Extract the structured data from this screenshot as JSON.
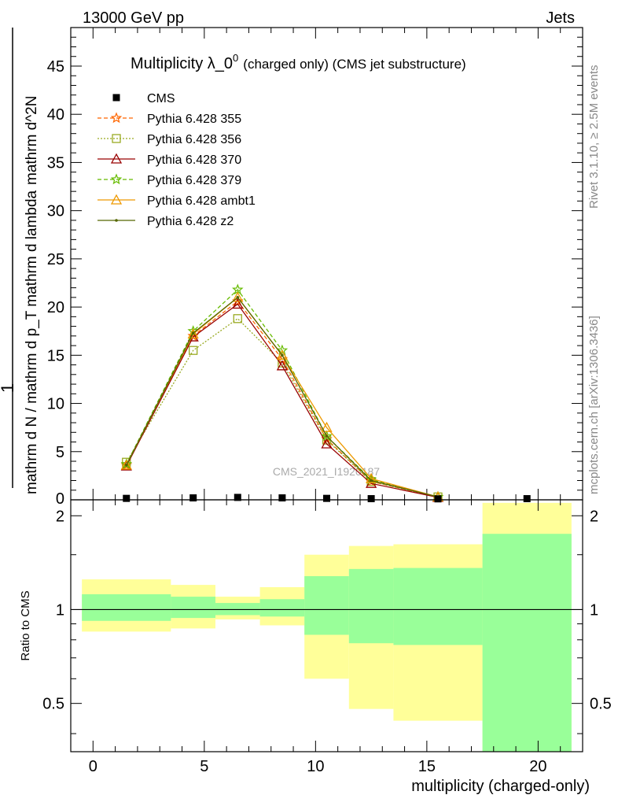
{
  "header": {
    "left": "13000 GeV pp",
    "right": "Jets"
  },
  "side_texts": {
    "rivet": "Rivet 3.1.10, ≥ 2.5M events",
    "mcplots": "mcplots.cern.ch [arXiv:1306.3436]"
  },
  "colors": {
    "ratio_band_outer": "#ffff99",
    "ratio_band_inner": "#99ff99",
    "data_marker": "#000000"
  },
  "chart_data": [
    {
      "type": "line",
      "title": "Multiplicity λ_0",
      "title_superscript": "0",
      "title_suffix": "(charged only) (CMS jet substructure)",
      "ylabel_numerator": "1",
      "ylabel": "mathrm d N / mathrm d p_T mathrm d lambda",
      "ylabel_top": "mathrm d^2N",
      "watermark": "CMS_2021_I1920187",
      "xlim": [
        -1,
        22
      ],
      "ylim": [
        0,
        49
      ],
      "yticks": [
        5,
        10,
        15,
        20,
        25,
        30,
        35,
        40,
        45
      ],
      "ytick_labels": [
        "5",
        "10",
        "15",
        "20",
        "25",
        "30",
        "35",
        "40",
        "45"
      ],
      "ytick_zero_label": "0",
      "grid": false,
      "legend_placement": "top-left",
      "data_series": {
        "name": "CMS",
        "x": [
          1.5,
          4.5,
          6.5,
          8.5,
          10.5,
          12.5,
          15.5,
          19.5
        ],
        "y": [
          0.15,
          0.2,
          0.25,
          0.2,
          0.15,
          0.12,
          0.1,
          0.12
        ]
      },
      "series": [
        {
          "name": "Pythia 6.428 355",
          "color": "#ff6600",
          "dash": "5,3",
          "marker": "star",
          "x": [
            1.5,
            4.5,
            6.5,
            8.5,
            10.5,
            12.5,
            15.5
          ],
          "y": [
            3.6,
            17.0,
            20.6,
            14.6,
            6.3,
            1.9,
            0.3
          ]
        },
        {
          "name": "Pythia 6.428 356",
          "color": "#99aa22",
          "dash": "2,2",
          "marker": "square",
          "x": [
            1.5,
            4.5,
            6.5,
            8.5,
            10.5,
            12.5,
            15.5
          ],
          "y": [
            3.9,
            15.5,
            18.8,
            14.2,
            6.2,
            1.9,
            0.3
          ]
        },
        {
          "name": "Pythia 6.428 370",
          "color": "#990000",
          "dash": "",
          "marker": "triangle",
          "x": [
            1.5,
            4.5,
            6.5,
            8.5,
            10.5,
            12.5,
            15.5
          ],
          "y": [
            3.5,
            16.9,
            20.3,
            13.9,
            5.8,
            1.7,
            0.25
          ]
        },
        {
          "name": "Pythia 6.428 379",
          "color": "#66bb00",
          "dash": "5,3",
          "marker": "star",
          "x": [
            1.5,
            4.5,
            6.5,
            8.5,
            10.5,
            12.5,
            15.5
          ],
          "y": [
            3.7,
            17.5,
            21.8,
            15.5,
            6.6,
            2.1,
            0.3
          ]
        },
        {
          "name": "Pythia 6.428 ambt1",
          "color": "#ee9900",
          "dash": "",
          "marker": "triangle",
          "x": [
            1.5,
            4.5,
            6.5,
            8.5,
            10.5,
            12.5,
            15.5
          ],
          "y": [
            3.6,
            17.2,
            21.0,
            15.0,
            7.5,
            2.2,
            0.3
          ]
        },
        {
          "name": "Pythia 6.428 z2",
          "color": "#556600",
          "dash": "",
          "marker": "dot",
          "x": [
            1.5,
            4.5,
            6.5,
            8.5,
            10.5,
            12.5,
            15.5
          ],
          "y": [
            3.6,
            17.3,
            21.0,
            15.0,
            6.6,
            2.0,
            0.3
          ]
        }
      ]
    },
    {
      "type": "area",
      "ylabel": "Ratio to CMS",
      "xlabel": "multiplicity (charged-only)",
      "xlim": [
        -1,
        22
      ],
      "ylim": [
        0.35,
        2.25
      ],
      "log_scale_y": true,
      "xticks": [
        0,
        5,
        10,
        15,
        20
      ],
      "xtick_labels": [
        "0",
        "5",
        "10",
        "15",
        "20"
      ],
      "yticks": [
        0.5,
        1,
        2
      ],
      "ytick_labels": [
        "0.5",
        "1",
        "2"
      ],
      "bins": [
        {
          "lo": -0.5,
          "hi": 3.5,
          "outer": [
            0.85,
            1.25
          ],
          "inner": [
            0.92,
            1.12
          ]
        },
        {
          "lo": 3.5,
          "hi": 5.5,
          "outer": [
            0.87,
            1.2
          ],
          "inner": [
            0.94,
            1.1
          ]
        },
        {
          "lo": 5.5,
          "hi": 7.5,
          "outer": [
            0.93,
            1.1
          ],
          "inner": [
            0.96,
            1.05
          ]
        },
        {
          "lo": 7.5,
          "hi": 9.5,
          "outer": [
            0.89,
            1.18
          ],
          "inner": [
            0.95,
            1.08
          ]
        },
        {
          "lo": 9.5,
          "hi": 11.5,
          "outer": [
            0.6,
            1.5
          ],
          "inner": [
            0.83,
            1.28
          ]
        },
        {
          "lo": 11.5,
          "hi": 13.5,
          "outer": [
            0.48,
            1.6
          ],
          "inner": [
            0.78,
            1.35
          ]
        },
        {
          "lo": 13.5,
          "hi": 17.5,
          "outer": [
            0.44,
            1.62
          ],
          "inner": [
            0.77,
            1.36
          ]
        },
        {
          "lo": 17.5,
          "hi": 21.5,
          "outer": [
            0.35,
            2.2
          ],
          "inner": [
            0.35,
            1.75
          ]
        }
      ]
    }
  ]
}
